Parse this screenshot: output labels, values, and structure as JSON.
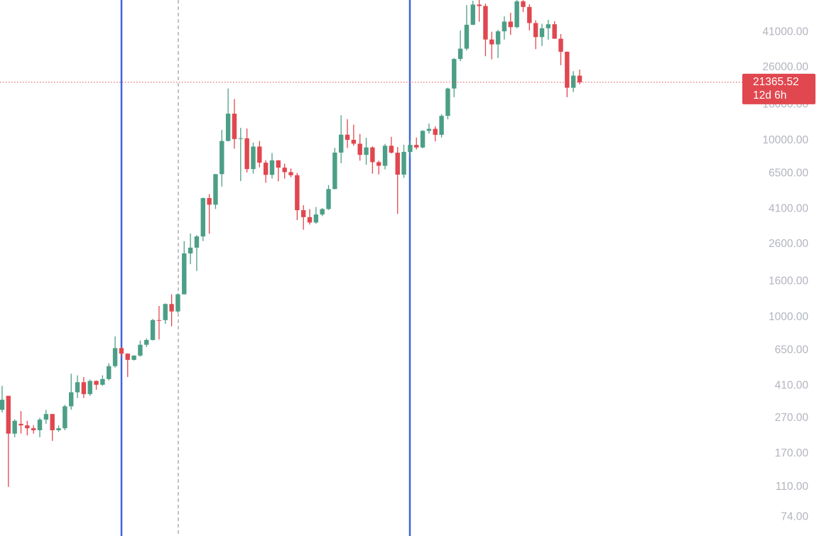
{
  "chart_data": {
    "type": "candlestick",
    "up_color": "#4c9f86",
    "down_color": "#e0474f",
    "log_scale": true,
    "ylim": [
      58,
      62400
    ],
    "yticks": [
      {
        "value": 74,
        "label": "74.00"
      },
      {
        "value": 110,
        "label": "110.00"
      },
      {
        "value": 170,
        "label": "170.00"
      },
      {
        "value": 270,
        "label": "270.00"
      },
      {
        "value": 410,
        "label": "410.00"
      },
      {
        "value": 650,
        "label": "650.00"
      },
      {
        "value": 1000,
        "label": "1000.00"
      },
      {
        "value": 1600,
        "label": "1600.00"
      },
      {
        "value": 2600,
        "label": "2600.00"
      },
      {
        "value": 4100,
        "label": "4100.00"
      },
      {
        "value": 6500,
        "label": "6500.00"
      },
      {
        "value": 10000,
        "label": "10000.00"
      },
      {
        "value": 16000,
        "label": "16000.00"
      },
      {
        "value": 26000,
        "label": "26000.00"
      },
      {
        "value": 41000,
        "label": "41000.00"
      }
    ],
    "last_price": 21365.52,
    "countdown": "12d 6h",
    "open": [
      300,
      360,
      220,
      250,
      245,
      236,
      230,
      264,
      284,
      230,
      236,
      314,
      377,
      430,
      368,
      437,
      416,
      448,
      530,
      670,
      624,
      575,
      608,
      700,
      745,
      966,
      965,
      1190,
      1080,
      1350,
      2300,
      2480,
      2870,
      4730,
      4340,
      6460,
      9950,
      14200,
      10200,
      10300,
      6900,
      9250,
      7500,
      6400,
      7730,
      7030,
      6630,
      6370,
      4040,
      3690,
      3440,
      3820,
      4100,
      5320,
      8550,
      10800,
      10100,
      9600,
      8300,
      9150,
      7550,
      7200,
      9350,
      8540,
      6420,
      8630,
      9450,
      9140,
      11350,
      11650,
      10780,
      13800,
      19700,
      28950,
      33100,
      45200,
      58800,
      57700,
      37300,
      35000,
      41500,
      47100,
      43800,
      61300,
      57000,
      46200,
      38500,
      43200,
      45500,
      37700,
      31800,
      19900,
      23300
    ],
    "high": [
      410,
      360,
      265,
      295,
      260,
      245,
      270,
      300,
      285,
      245,
      320,
      480,
      470,
      460,
      445,
      440,
      470,
      550,
      780,
      680,
      625,
      610,
      740,
      760,
      980,
      1160,
      1200,
      1350,
      1370,
      2700,
      2980,
      2920,
      4760,
      4980,
      6470,
      11500,
      19700,
      17200,
      11800,
      11700,
      9750,
      9950,
      7750,
      8500,
      7760,
      7400,
      6960,
      6560,
      4310,
      4100,
      4210,
      4150,
      5600,
      9100,
      13900,
      13200,
      12300,
      10900,
      10370,
      9270,
      7700,
      9580,
      10500,
      9200,
      9480,
      10080,
      10400,
      11450,
      12480,
      12050,
      14100,
      19900,
      29300,
      41950,
      58350,
      61800,
      64900,
      59500,
      41300,
      42300,
      50500,
      52900,
      67000,
      69000,
      59100,
      47900,
      45800,
      48200,
      47400,
      40000,
      31900,
      24700,
      25200
    ],
    "low": [
      290,
      110,
      210,
      220,
      215,
      220,
      210,
      250,
      200,
      225,
      230,
      300,
      350,
      350,
      360,
      390,
      410,
      440,
      520,
      600,
      460,
      570,
      600,
      680,
      740,
      750,
      920,
      890,
      1060,
      1350,
      2000,
      1830,
      2700,
      2970,
      4100,
      5500,
      9900,
      9000,
      5900,
      6600,
      6500,
      7050,
      5780,
      6100,
      5880,
      6100,
      6200,
      3550,
      3130,
      3350,
      3380,
      3740,
      4050,
      5300,
      7450,
      9080,
      9350,
      7700,
      7300,
      6500,
      6430,
      6870,
      8450,
      3850,
      6150,
      8100,
      8900,
      9050,
      10950,
      9900,
      10400,
      13200,
      17600,
      28150,
      32300,
      45000,
      47000,
      30000,
      28800,
      29300,
      37300,
      39600,
      43300,
      53300,
      42000,
      32900,
      34300,
      37150,
      37580,
      26700,
      17600,
      18800,
      20800
    ],
    "close": [
      342,
      220,
      260,
      245,
      236,
      230,
      264,
      284,
      230,
      236,
      314,
      377,
      430,
      368,
      437,
      416,
      448,
      530,
      670,
      624,
      575,
      608,
      700,
      745,
      966,
      965,
      1190,
      1080,
      1350,
      2300,
      2480,
      2870,
      4730,
      4340,
      6460,
      9950,
      14200,
      10200,
      10300,
      6900,
      9250,
      7500,
      6400,
      7730,
      7030,
      6630,
      6370,
      4040,
      3690,
      3440,
      3820,
      4100,
      5320,
      8550,
      10800,
      10100,
      9600,
      8300,
      9150,
      7550,
      7200,
      9350,
      8540,
      6420,
      8630,
      9450,
      9140,
      11350,
      11650,
      10780,
      13800,
      19700,
      28950,
      33100,
      45200,
      58800,
      57700,
      37300,
      35000,
      41500,
      47100,
      43800,
      61300,
      57000,
      46200,
      38500,
      43200,
      45500,
      37700,
      31800,
      19900,
      23300,
      21365.52
    ]
  }
}
